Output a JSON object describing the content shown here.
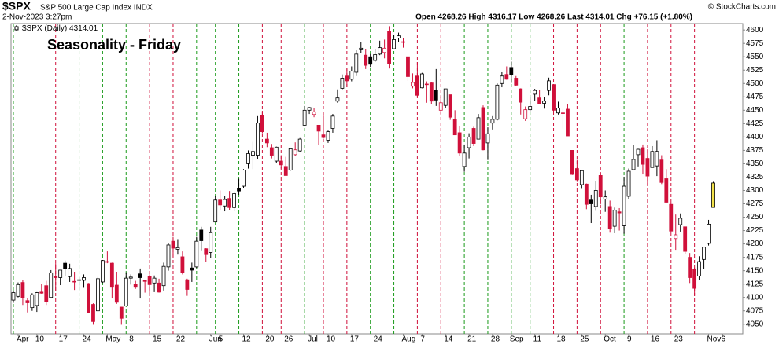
{
  "chart_data": {
    "type": "candlestick",
    "symbol": "$SPX",
    "description": "S&P 500 Large Cap Index INDX",
    "timestamp": "2-Nov-2023 3:27pm",
    "quote": "Open 4268.26 High 4316.17 Low 4268.26 Last 4314.01 Chg +76.15 (+1.80%)",
    "copyright": "© StockCharts.com",
    "title": "Seasonality - Friday",
    "title_color": "#1a1ad0",
    "up_color": "#000000",
    "down_color": "#d0103a",
    "last_color": "#f3e24a",
    "friday_up_color": "#1a9a1a",
    "friday_down_color": "#d0103a",
    "grid": false,
    "x": [
      "2023-03-31",
      "2023-04-03",
      "2023-04-04",
      "2023-04-05",
      "2023-04-06",
      "2023-04-10",
      "2023-04-11",
      "2023-04-12",
      "2023-04-13",
      "2023-04-14",
      "2023-04-17",
      "2023-04-18",
      "2023-04-19",
      "2023-04-20",
      "2023-04-21",
      "2023-04-24",
      "2023-04-25",
      "2023-04-26",
      "2023-04-27",
      "2023-04-28",
      "2023-05-01",
      "2023-05-02",
      "2023-05-03",
      "2023-05-04",
      "2023-05-05",
      "2023-05-08",
      "2023-05-09",
      "2023-05-10",
      "2023-05-11",
      "2023-05-12",
      "2023-05-15",
      "2023-05-16",
      "2023-05-17",
      "2023-05-18",
      "2023-05-19",
      "2023-05-22",
      "2023-05-23",
      "2023-05-24",
      "2023-05-25",
      "2023-05-26",
      "2023-05-30",
      "2023-05-31",
      "2023-06-01",
      "2023-06-02",
      "2023-06-05",
      "2023-06-06",
      "2023-06-07",
      "2023-06-08",
      "2023-06-09",
      "2023-06-12",
      "2023-06-13",
      "2023-06-14",
      "2023-06-15",
      "2023-06-16",
      "2023-06-20",
      "2023-06-21",
      "2023-06-22",
      "2023-06-23",
      "2023-06-26",
      "2023-06-27",
      "2023-06-28",
      "2023-06-29",
      "2023-06-30",
      "2023-07-03",
      "2023-07-05",
      "2023-07-06",
      "2023-07-07",
      "2023-07-10",
      "2023-07-11",
      "2023-07-12",
      "2023-07-13",
      "2023-07-14",
      "2023-07-17",
      "2023-07-18",
      "2023-07-19",
      "2023-07-20",
      "2023-07-21",
      "2023-07-24",
      "2023-07-25",
      "2023-07-26",
      "2023-07-27",
      "2023-07-28",
      "2023-07-31",
      "2023-08-01",
      "2023-08-02",
      "2023-08-03",
      "2023-08-04",
      "2023-08-07",
      "2023-08-08",
      "2023-08-09",
      "2023-08-10",
      "2023-08-11",
      "2023-08-14",
      "2023-08-15",
      "2023-08-16",
      "2023-08-17",
      "2023-08-18",
      "2023-08-21",
      "2023-08-22",
      "2023-08-23",
      "2023-08-24",
      "2023-08-25",
      "2023-08-28",
      "2023-08-29",
      "2023-08-30",
      "2023-08-31",
      "2023-09-01",
      "2023-09-05",
      "2023-09-06",
      "2023-09-07",
      "2023-09-08",
      "2023-09-11",
      "2023-09-12",
      "2023-09-13",
      "2023-09-14",
      "2023-09-15",
      "2023-09-18",
      "2023-09-19",
      "2023-09-20",
      "2023-09-21",
      "2023-09-22",
      "2023-09-25",
      "2023-09-26",
      "2023-09-27",
      "2023-09-28",
      "2023-09-29",
      "2023-10-02",
      "2023-10-03",
      "2023-10-04",
      "2023-10-05",
      "2023-10-06",
      "2023-10-09",
      "2023-10-10",
      "2023-10-11",
      "2023-10-12",
      "2023-10-13",
      "2023-10-16",
      "2023-10-17",
      "2023-10-18",
      "2023-10-19",
      "2023-10-20",
      "2023-10-23",
      "2023-10-24",
      "2023-10-25",
      "2023-10-26",
      "2023-10-27",
      "2023-10-30",
      "2023-10-31",
      "2023-11-01",
      "2023-11-02"
    ],
    "series": [
      {
        "name": "$SPX (Daily)",
        "open": [
          4095,
          4102,
          4128,
          4094,
          4081,
          4085,
          4110,
          4122,
          4100,
          4140,
          4137,
          4164,
          4139,
          4130,
          4132,
          4132,
          4126,
          4087,
          4075,
          4129,
          4166,
          4164,
          4123,
          4082,
          4084,
          4136,
          4124,
          4144,
          4132,
          4139,
          4127,
          4127,
          4122,
          4157,
          4205,
          4190,
          4176,
          4133,
          4155,
          4157,
          4226,
          4191,
          4184,
          4241,
          4282,
          4271,
          4285,
          4268,
          4304,
          4308,
          4350,
          4366,
          4366,
          4440,
          4396,
          4380,
          4355,
          4355,
          4345,
          4338,
          4367,
          4374,
          4422,
          4450,
          4442,
          4422,
          4404,
          4394,
          4416,
          4467,
          4491,
          4514,
          4508,
          4521,
          4563,
          4553,
          4550,
          4543,
          4555,
          4558,
          4598,
          4565,
          4585,
          4578,
          4550,
          4495,
          4514,
          4492,
          4498,
          4501,
          4487,
          4450,
          4459,
          4479,
          4433,
          4408,
          4345,
          4380,
          4416,
          4396,
          4455,
          4389,
          4426,
          4433,
          4500,
          4517,
          4530,
          4510,
          4490,
          4434,
          4451,
          4480,
          4473,
          4463,
          4487,
          4498,
          4445,
          4445,
          4452,
          4375,
          4341,
          4311,
          4312,
          4282,
          4270,
          4328,
          4284,
          4270,
          4233,
          4260,
          4234,
          4289,
          4339,
          4367,
          4380,
          4360,
          4343,
          4346,
          4357,
          4322,
          4274,
          4210,
          4236,
          4232,
          4175,
          4153,
          4140,
          4171,
          4201,
          4268.26
        ],
        "high": [
          4112,
          4128,
          4133,
          4099,
          4108,
          4110,
          4125,
          4131,
          4151,
          4164,
          4151,
          4169,
          4163,
          4148,
          4138,
          4143,
          4127,
          4089,
          4138,
          4170,
          4186,
          4165,
          4148,
          4082,
          4147,
          4143,
          4131,
          4154,
          4132,
          4143,
          4141,
          4135,
          4165,
          4202,
          4213,
          4209,
          4186,
          4135,
          4165,
          4213,
          4232,
          4192,
          4232,
          4290,
          4300,
          4289,
          4299,
          4298,
          4322,
          4340,
          4375,
          4391,
          4439,
          4449,
          4408,
          4387,
          4382,
          4366,
          4363,
          4379,
          4390,
          4398,
          4458,
          4456,
          4454,
          4422,
          4440,
          4412,
          4443,
          4489,
          4517,
          4528,
          4532,
          4562,
          4578,
          4565,
          4555,
          4564,
          4580,
          4582,
          4607,
          4590,
          4595,
          4585,
          4550,
          4519,
          4540,
          4520,
          4504,
          4503,
          4527,
          4476,
          4490,
          4479,
          4450,
          4421,
          4386,
          4407,
          4419,
          4443,
          4459,
          4418,
          4439,
          4500,
          4521,
          4532,
          4541,
          4514,
          4491,
          4457,
          4473,
          4490,
          4488,
          4474,
          4511,
          4498,
          4466,
          4452,
          4461,
          4375,
          4357,
          4338,
          4313,
          4292,
          4318,
          4333,
          4300,
          4281,
          4268,
          4267,
          4324,
          4341,
          4385,
          4378,
          4386,
          4377,
          4383,
          4394,
          4366,
          4340,
          4276,
          4255,
          4257,
          4232,
          4183,
          4156,
          4177,
          4194,
          4245,
          4316.17
        ],
        "low": [
          4090,
          4100,
          4086,
          4072,
          4075,
          4073,
          4107,
          4086,
          4099,
          4113,
          4123,
          4140,
          4129,
          4114,
          4114,
          4118,
          4071,
          4049,
          4075,
          4127,
          4164,
          4098,
          4088,
          4049,
          4084,
          4124,
          4116,
          4098,
          4109,
          4108,
          4110,
          4109,
          4113,
          4150,
          4176,
          4180,
          4143,
          4103,
          4129,
          4155,
          4188,
          4166,
          4174,
          4241,
          4264,
          4261,
          4263,
          4261,
          4292,
          4305,
          4341,
          4340,
          4359,
          4407,
          4381,
          4360,
          4352,
          4341,
          4328,
          4337,
          4364,
          4372,
          4422,
          4443,
          4437,
          4385,
          4397,
          4389,
          4408,
          4464,
          4489,
          4493,
          4504,
          4514,
          4557,
          4527,
          4531,
          4540,
          4553,
          4547,
          4528,
          4564,
          4577,
          4567,
          4505,
          4491,
          4474,
          4491,
          4464,
          4461,
          4458,
          4443,
          4454,
          4432,
          4404,
          4364,
          4335,
          4360,
          4383,
          4396,
          4375,
          4357,
          4414,
          4431,
          4493,
          4507,
          4501,
          4496,
          4442,
          4430,
          4448,
          4468,
          4461,
          4453,
          4478,
          4447,
          4442,
          4416,
          4402,
          4329,
          4316,
          4303,
          4265,
          4239,
          4262,
          4274,
          4260,
          4221,
          4220,
          4225,
          4219,
          4284,
          4339,
          4345,
          4330,
          4311,
          4343,
          4327,
          4312,
          4276,
          4223,
          4189,
          4223,
          4181,
          4127,
          4103,
          4132,
          4153,
          4197,
          4268.26
        ],
        "close": [
          4109,
          4124,
          4100,
          4090,
          4105,
          4109,
          4108,
          4092,
          4146,
          4137,
          4151,
          4154,
          4154,
          4129,
          4133,
          4137,
          4071,
          4055,
          4135,
          4169,
          4167,
          4119,
          4091,
          4061,
          4136,
          4138,
          4119,
          4137,
          4130,
          4124,
          4136,
          4110,
          4158,
          4198,
          4192,
          4193,
          4146,
          4115,
          4151,
          4205,
          4206,
          4180,
          4221,
          4282,
          4273,
          4283,
          4268,
          4294,
          4299,
          4338,
          4369,
          4373,
          4426,
          4410,
          4389,
          4366,
          4381,
          4348,
          4328,
          4378,
          4376,
          4396,
          4450,
          4455,
          4447,
          4411,
          4399,
          4410,
          4439,
          4473,
          4510,
          4505,
          4523,
          4555,
          4566,
          4534,
          4536,
          4554,
          4567,
          4566,
          4537,
          4582,
          4589,
          4577,
          4513,
          4502,
          4478,
          4518,
          4499,
          4467,
          4469,
          4464,
          4490,
          4437,
          4404,
          4370,
          4370,
          4400,
          4388,
          4436,
          4376,
          4406,
          4433,
          4497,
          4514,
          4508,
          4516,
          4497,
          4465,
          4451,
          4457,
          4487,
          4462,
          4467,
          4505,
          4450,
          4454,
          4444,
          4402,
          4330,
          4320,
          4337,
          4274,
          4275,
          4300,
          4288,
          4288,
          4229,
          4263,
          4258,
          4308,
          4336,
          4358,
          4377,
          4349,
          4327,
          4373,
          4373,
          4315,
          4278,
          4224,
          4217,
          4248,
          4186,
          4137,
          4117,
          4167,
          4194,
          4237,
          4314.01
        ]
      }
    ],
    "ylim": [
      4032,
      4612
    ],
    "yticks": [
      4050,
      4075,
      4100,
      4125,
      4150,
      4175,
      4200,
      4225,
      4250,
      4275,
      4300,
      4325,
      4350,
      4375,
      4400,
      4425,
      4450,
      4475,
      4500,
      4525,
      4550,
      4575,
      4600
    ],
    "xticks": [
      {
        "value": "2023-04-03",
        "label": "Apr"
      },
      {
        "value": "2023-04-10",
        "label": "10"
      },
      {
        "value": "2023-04-17",
        "label": "17"
      },
      {
        "value": "2023-04-24",
        "label": "24"
      },
      {
        "value": "2023-05-01",
        "label": "May"
      },
      {
        "value": "2023-05-08",
        "label": "8"
      },
      {
        "value": "2023-05-15",
        "label": "15"
      },
      {
        "value": "2023-05-22",
        "label": "22"
      },
      {
        "value": "2023-06-01",
        "label": "Jun"
      },
      {
        "value": "2023-06-05",
        "label": "5"
      },
      {
        "value": "2023-06-12",
        "label": "12"
      },
      {
        "value": "2023-06-20",
        "label": "20"
      },
      {
        "value": "2023-06-26",
        "label": "26"
      },
      {
        "value": "2023-07-03",
        "label": "Jul"
      },
      {
        "value": "2023-07-10",
        "label": "10"
      },
      {
        "value": "2023-07-17",
        "label": "17"
      },
      {
        "value": "2023-07-24",
        "label": "24"
      },
      {
        "value": "2023-08-01",
        "label": "Aug"
      },
      {
        "value": "2023-08-07",
        "label": "7"
      },
      {
        "value": "2023-08-14",
        "label": "14"
      },
      {
        "value": "2023-08-21",
        "label": "21"
      },
      {
        "value": "2023-08-28",
        "label": "28"
      },
      {
        "value": "2023-09-01",
        "label": "Sep"
      },
      {
        "value": "2023-09-11",
        "label": "11"
      },
      {
        "value": "2023-09-18",
        "label": "18"
      },
      {
        "value": "2023-09-25",
        "label": "25"
      },
      {
        "value": "2023-10-02",
        "label": "Oct"
      },
      {
        "value": "2023-10-09",
        "label": "9"
      },
      {
        "value": "2023-10-16",
        "label": "16"
      },
      {
        "value": "2023-10-23",
        "label": "23"
      },
      {
        "value": "2023-11-01",
        "label": "Nov"
      },
      {
        "value": "2023-11-06",
        "label": "6"
      }
    ]
  }
}
